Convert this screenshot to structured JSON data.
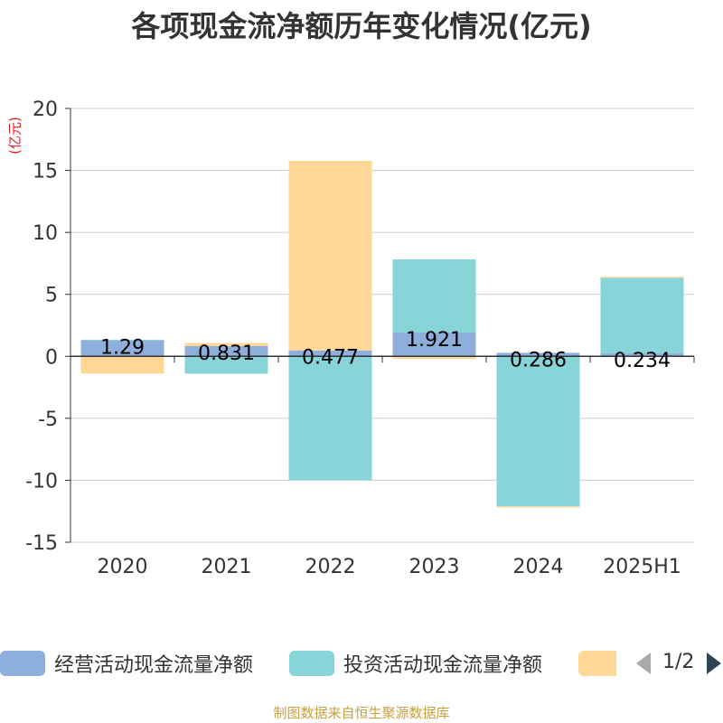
{
  "title": "各项现金流净额历年变化情况(亿元)",
  "unit_label": "(亿元)",
  "source": "制图数据来自恒生聚源数据库",
  "legend": {
    "items": [
      {
        "label": "经营活动现金流量净额",
        "color": "#8eaedc"
      },
      {
        "label": "投资活动现金流量净额",
        "color": "#87d5d8"
      },
      {
        "label": "",
        "color": "#ffd898"
      }
    ],
    "page": "1/2"
  },
  "chart_data": {
    "type": "bar",
    "stacked": true,
    "categories": [
      "2020",
      "2021",
      "2022",
      "2023",
      "2024",
      "2025H1"
    ],
    "ylim": [
      -15,
      20
    ],
    "yticks": [
      20,
      15,
      10,
      5,
      0,
      -5,
      -10,
      -15
    ],
    "grid": true,
    "series": [
      {
        "name": "经营活动现金流量净额",
        "color": "#8eaedc",
        "values": [
          1.29,
          0.831,
          0.477,
          1.921,
          0.286,
          0.234
        ]
      },
      {
        "name": "投资活动现金流量净额",
        "color": "#87d5d8",
        "values": [
          0.05,
          -1.4,
          -10.0,
          5.9,
          -12.1,
          6.1
        ]
      },
      {
        "color": "#ffd898",
        "values": [
          -1.4,
          0.25,
          15.3,
          -0.2,
          -0.1,
          0.1
        ]
      }
    ],
    "data_labels": [
      "1.29",
      "0.831",
      "0.477",
      "1.921",
      "0.286",
      "0.234"
    ]
  }
}
